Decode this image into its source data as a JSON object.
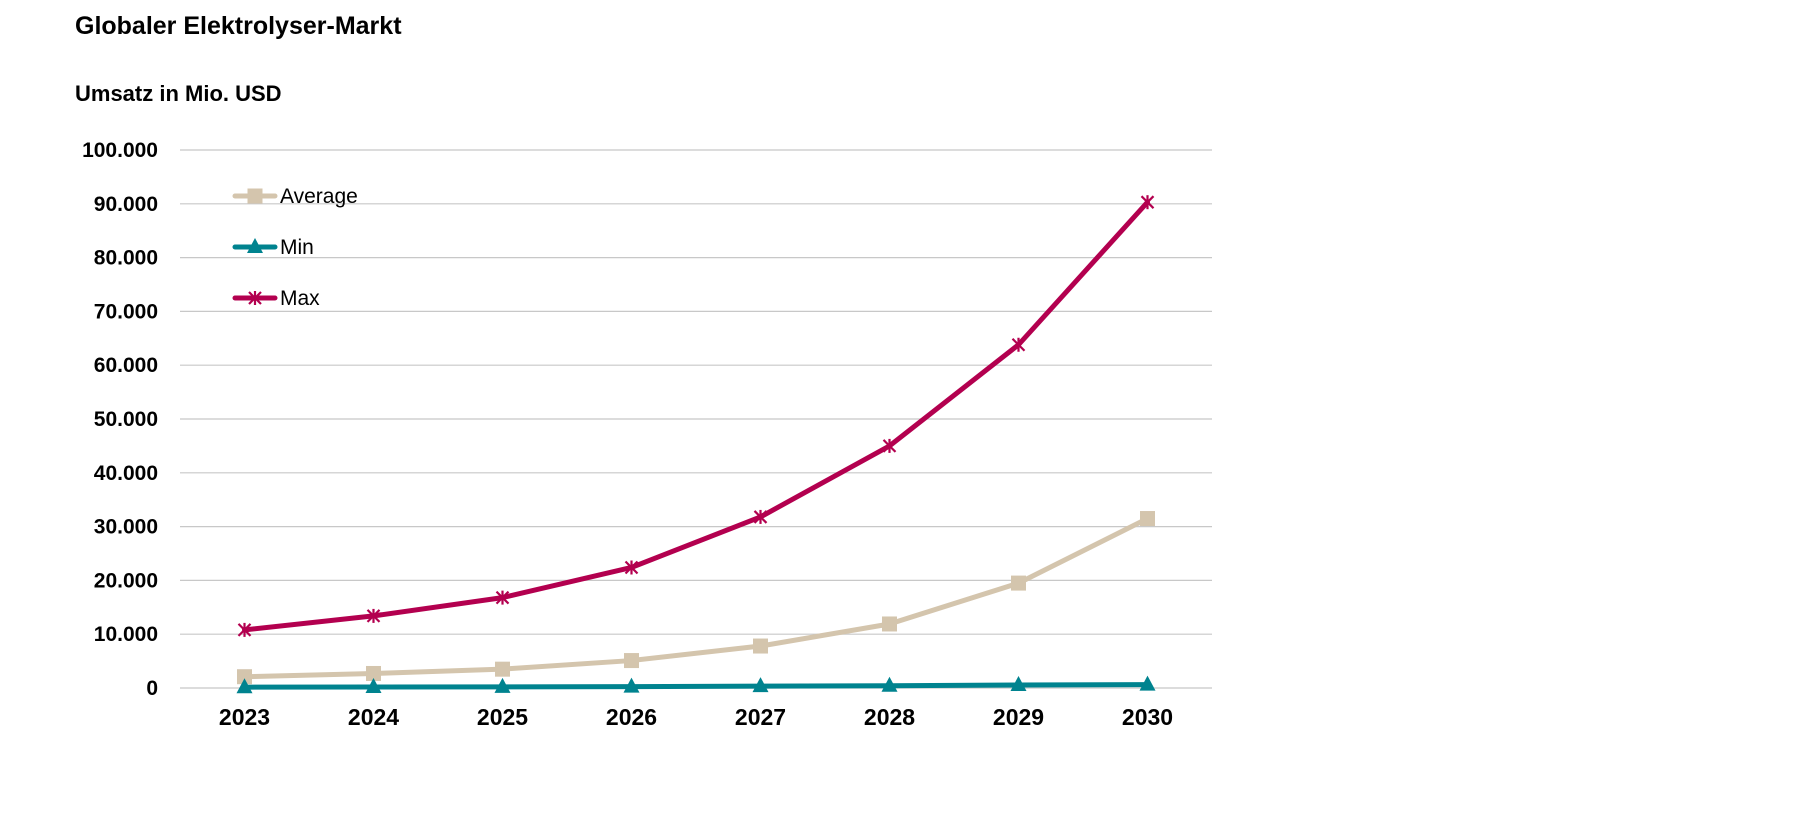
{
  "chart_data": {
    "type": "line",
    "title": "Globaler Elektrolyser-Markt",
    "ylabel": "Umsatz in Mio. USD",
    "xlabel": "",
    "categories": [
      "2023",
      "2024",
      "2025",
      "2026",
      "2027",
      "2028",
      "2029",
      "2030"
    ],
    "ylim": [
      0,
      100000
    ],
    "yticks": [
      0,
      10000,
      20000,
      30000,
      40000,
      50000,
      60000,
      70000,
      80000,
      90000,
      100000
    ],
    "ytick_labels": [
      "0",
      "10.000",
      "20.000",
      "30.000",
      "40.000",
      "50.000",
      "60.000",
      "70.000",
      "80.000",
      "90.000",
      "100.000"
    ],
    "grid": true,
    "legend_position": "top-left",
    "series": [
      {
        "name": "Average",
        "color": "#D4C5AD",
        "marker": "square",
        "values": [
          2100,
          2700,
          3500,
          5100,
          7800,
          11900,
          19500,
          31500
        ]
      },
      {
        "name": "Min",
        "color": "#00838F",
        "marker": "triangle",
        "values": [
          150,
          180,
          200,
          250,
          350,
          420,
          560,
          620
        ]
      },
      {
        "name": "Max",
        "color": "#B3004F",
        "marker": "star",
        "values": [
          10800,
          13400,
          16800,
          22400,
          31800,
          45000,
          63800,
          90300
        ]
      }
    ]
  }
}
